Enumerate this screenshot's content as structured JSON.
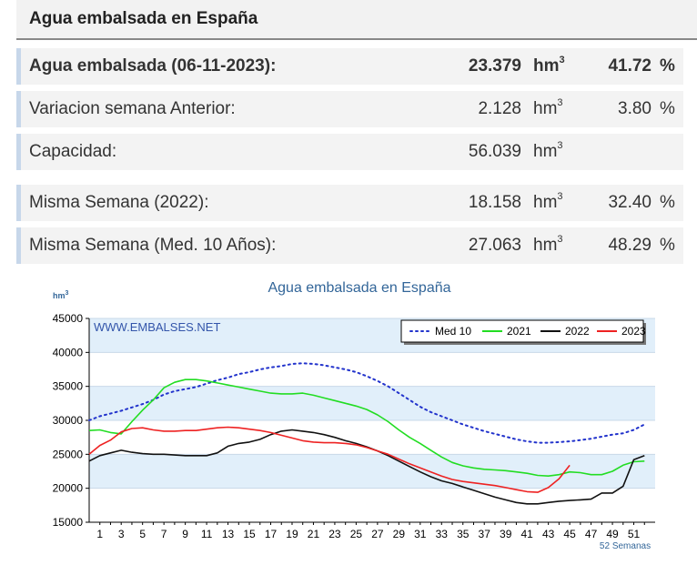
{
  "header": {
    "title": "Agua embalsada en España"
  },
  "stats": [
    {
      "label": "Agua embalsada (06-11-2023):",
      "value": "23.379",
      "unit": "hm",
      "unit_sup": "3",
      "pct": "41.72",
      "pct_sign": "%",
      "bold": true
    },
    {
      "label": "Variacion semana Anterior:",
      "value": "2.128",
      "unit": "hm",
      "unit_sup": "3",
      "pct": "3.80",
      "pct_sign": "%",
      "bold": false
    },
    {
      "label": "Capacidad:",
      "value": "56.039",
      "unit": "hm",
      "unit_sup": "3",
      "pct": "",
      "pct_sign": "",
      "bold": false
    },
    {
      "label": "Misma Semana (2022):",
      "value": "18.158",
      "unit": "hm",
      "unit_sup": "3",
      "pct": "32.40",
      "pct_sign": "%",
      "bold": false
    },
    {
      "label": "Misma Semana (Med. 10 Años):",
      "value": "27.063",
      "unit": "hm",
      "unit_sup": "3",
      "pct": "48.29",
      "pct_sign": "%",
      "bold": false
    }
  ],
  "chart_data": {
    "type": "line",
    "title": "Agua embalsada en España",
    "ylabel": "hm",
    "ylabel_sup": "3",
    "xlabel": "52 Semanas",
    "watermark": "WWW.EMBALSES.NET",
    "ylim": [
      15000,
      45000
    ],
    "yticks": [
      15000,
      20000,
      25000,
      30000,
      35000,
      40000,
      45000
    ],
    "xlim": [
      0,
      53
    ],
    "xticks": [
      "1",
      "3",
      "5",
      "7",
      "9",
      "11",
      "13",
      "15",
      "17",
      "19",
      "21",
      "23",
      "25",
      "27",
      "29",
      "31",
      "33",
      "35",
      "37",
      "39",
      "41",
      "43",
      "45",
      "47",
      "49",
      "51"
    ],
    "grid": true,
    "legend_position": "top-right",
    "colors": {
      "band": "#e1effa",
      "plot_bg": "#ffffff",
      "axis": "#000000",
      "title": "#336699"
    },
    "series": [
      {
        "name": "Med 10",
        "color": "#2233cc",
        "dash": "dotted",
        "x": [
          0,
          1,
          2,
          3,
          4,
          5,
          6,
          7,
          8,
          9,
          10,
          11,
          12,
          13,
          14,
          15,
          16,
          17,
          18,
          19,
          20,
          21,
          22,
          23,
          24,
          25,
          26,
          27,
          28,
          29,
          30,
          31,
          32,
          33,
          34,
          35,
          36,
          37,
          38,
          39,
          40,
          41,
          42,
          43,
          44,
          45,
          46,
          47,
          48,
          49,
          50,
          51,
          52
        ],
        "values": [
          30000,
          30600,
          31000,
          31400,
          31900,
          32400,
          33000,
          33800,
          34300,
          34600,
          34900,
          35400,
          35900,
          36300,
          36800,
          37100,
          37500,
          37800,
          38000,
          38300,
          38400,
          38300,
          38100,
          37800,
          37500,
          37100,
          36500,
          35800,
          35000,
          34000,
          33000,
          32000,
          31200,
          30600,
          30000,
          29400,
          28900,
          28400,
          28000,
          27600,
          27200,
          26900,
          26700,
          26700,
          26800,
          26900,
          27100,
          27300,
          27600,
          27900,
          28100,
          28600,
          29400
        ]
      },
      {
        "name": "2021",
        "color": "#22dd22",
        "dash": "solid",
        "x": [
          0,
          1,
          2,
          3,
          4,
          5,
          6,
          7,
          8,
          9,
          10,
          11,
          12,
          13,
          14,
          15,
          16,
          17,
          18,
          19,
          20,
          21,
          22,
          23,
          24,
          25,
          26,
          27,
          28,
          29,
          30,
          31,
          32,
          33,
          34,
          35,
          36,
          37,
          38,
          39,
          40,
          41,
          42,
          43,
          44,
          45,
          46,
          47,
          48,
          49,
          50,
          51,
          52
        ],
        "values": [
          28500,
          28600,
          28200,
          28000,
          29800,
          31500,
          33000,
          34800,
          35600,
          36000,
          36000,
          35800,
          35500,
          35200,
          34900,
          34600,
          34300,
          34000,
          33900,
          33900,
          34000,
          33700,
          33300,
          32900,
          32500,
          32100,
          31600,
          30800,
          29800,
          28600,
          27500,
          26600,
          25600,
          24600,
          23800,
          23300,
          23000,
          22800,
          22700,
          22600,
          22400,
          22200,
          21900,
          21800,
          22000,
          22400,
          22300,
          22000,
          22000,
          22500,
          23400,
          23900,
          24000
        ]
      },
      {
        "name": "2022",
        "color": "#111111",
        "dash": "solid",
        "x": [
          0,
          1,
          2,
          3,
          4,
          5,
          6,
          7,
          8,
          9,
          10,
          11,
          12,
          13,
          14,
          15,
          16,
          17,
          18,
          19,
          20,
          21,
          22,
          23,
          24,
          25,
          26,
          27,
          28,
          29,
          30,
          31,
          32,
          33,
          34,
          35,
          36,
          37,
          38,
          39,
          40,
          41,
          42,
          43,
          44,
          45,
          46,
          47,
          48,
          49,
          50,
          51,
          52
        ],
        "values": [
          24000,
          24800,
          25200,
          25600,
          25300,
          25100,
          25000,
          25000,
          24900,
          24800,
          24800,
          24800,
          25200,
          26200,
          26600,
          26800,
          27200,
          27900,
          28400,
          28600,
          28400,
          28200,
          27900,
          27500,
          27000,
          26600,
          26100,
          25500,
          24800,
          24000,
          23200,
          22400,
          21700,
          21100,
          20700,
          20200,
          19700,
          19200,
          18700,
          18300,
          17900,
          17700,
          17700,
          17900,
          18100,
          18200,
          18300,
          18400,
          19300,
          19300,
          20300,
          24200,
          24800
        ]
      },
      {
        "name": "2023",
        "color": "#ee2222",
        "dash": "solid",
        "x": [
          0,
          1,
          2,
          3,
          4,
          5,
          6,
          7,
          8,
          9,
          10,
          11,
          12,
          13,
          14,
          15,
          16,
          17,
          18,
          19,
          20,
          21,
          22,
          23,
          24,
          25,
          26,
          27,
          28,
          29,
          30,
          31,
          32,
          33,
          34,
          35,
          36,
          37,
          38,
          39,
          40,
          41,
          42,
          43,
          44,
          45
        ],
        "values": [
          25000,
          26300,
          27100,
          28300,
          28800,
          28900,
          28600,
          28400,
          28400,
          28500,
          28500,
          28700,
          28900,
          29000,
          28900,
          28700,
          28500,
          28200,
          27800,
          27400,
          27000,
          26800,
          26700,
          26700,
          26600,
          26400,
          26000,
          25500,
          25000,
          24300,
          23600,
          23000,
          22400,
          21800,
          21300,
          21000,
          20800,
          20600,
          20400,
          20100,
          19800,
          19500,
          19400,
          20100,
          21400,
          23379
        ]
      }
    ]
  }
}
